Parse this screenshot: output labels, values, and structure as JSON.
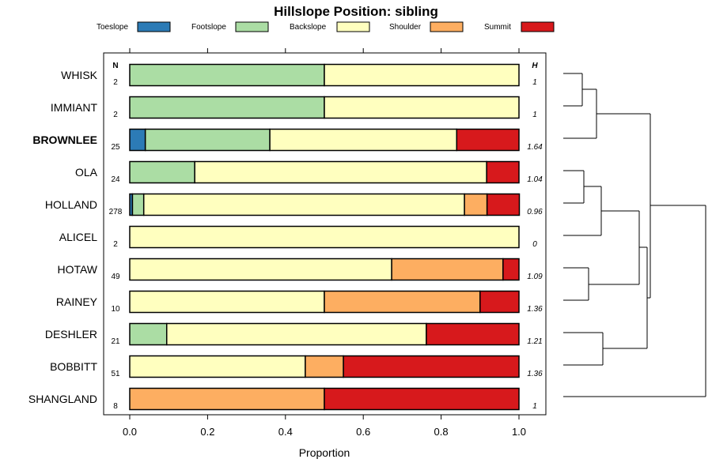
{
  "chart_data": {
    "type": "bar",
    "orientation": "horizontal-stacked",
    "title": "Hillslope Position: sibling",
    "xlabel": "Proportion",
    "ylabel": "",
    "xlim": [
      0,
      1
    ],
    "x_ticks": [
      0.0,
      0.2,
      0.4,
      0.6,
      0.8,
      1.0
    ],
    "x_tick_labels": [
      "0.0",
      "0.2",
      "0.4",
      "0.6",
      "0.8",
      "1.0"
    ],
    "n_header": "N",
    "h_header": "H",
    "legend": [
      {
        "name": "Toeslope",
        "color": "#2C7BB6"
      },
      {
        "name": "Footslope",
        "color": "#ABDDA4"
      },
      {
        "name": "Backslope",
        "color": "#FFFFBF"
      },
      {
        "name": "Shoulder",
        "color": "#FDAE61"
      },
      {
        "name": "Summit",
        "color": "#D7191C"
      }
    ],
    "categories": [
      "WHISK",
      "IMMIANT",
      "BROWNLEE",
      "OLA",
      "HOLLAND",
      "ALICEL",
      "HOTAW",
      "RAINEY",
      "DESHLER",
      "BOBBITT",
      "SHANGLAND"
    ],
    "highlight": "BROWNLEE",
    "n": [
      "2",
      "2",
      "25",
      "24",
      "278",
      "2",
      "49",
      "10",
      "21",
      "51",
      "8"
    ],
    "h": [
      "1",
      "1",
      "1.64",
      "1.04",
      "0.96",
      "0",
      "1.09",
      "1.36",
      "1.21",
      "1.36",
      "1"
    ],
    "series": [
      {
        "name": "Toeslope",
        "values": [
          0,
          0,
          0.04,
          0,
          0.007,
          0,
          0,
          0,
          0,
          0,
          0
        ]
      },
      {
        "name": "Footslope",
        "values": [
          0.5,
          0.5,
          0.32,
          0.167,
          0.029,
          0,
          0,
          0,
          0.095,
          0,
          0
        ]
      },
      {
        "name": "Backslope",
        "values": [
          0.5,
          0.5,
          0.48,
          0.75,
          0.824,
          1.0,
          0.673,
          0.5,
          0.667,
          0.451,
          0
        ]
      },
      {
        "name": "Shoulder",
        "values": [
          0,
          0,
          0,
          0,
          0.058,
          0,
          0.286,
          0.4,
          0,
          0.098,
          0.5
        ]
      },
      {
        "name": "Summit",
        "values": [
          0,
          0,
          0.16,
          0.083,
          0.083,
          0,
          0.041,
          0.1,
          0.238,
          0.451,
          0.5
        ]
      }
    ]
  }
}
